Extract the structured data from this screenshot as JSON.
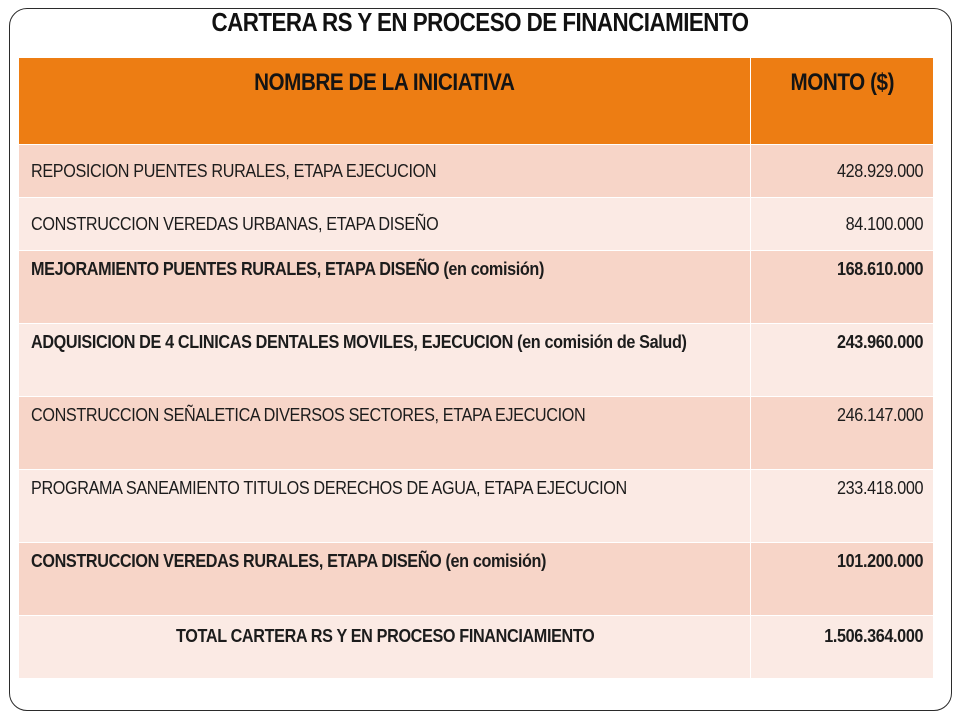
{
  "slide": {
    "title": "CARTERA RS Y EN PROCESO DE FINANCIAMIENTO"
  },
  "table": {
    "headers": {
      "name": "NOMBRE DE LA INICIATIVA",
      "amount": "MONTO ($)"
    },
    "rows": [
      {
        "name": "REPOSICION PUENTES RURALES, ETAPA EJECUCION",
        "amount": "428.929.000",
        "bold": false
      },
      {
        "name": "CONSTRUCCION VEREDAS URBANAS, ETAPA DISEÑO",
        "amount": "84.100.000",
        "bold": false
      },
      {
        "name": "MEJORAMIENTO PUENTES RURALES, ETAPA DISEÑO (en comisión)",
        "amount": "168.610.000",
        "bold": true
      },
      {
        "name": "ADQUISICION DE 4 CLINICAS DENTALES MOVILES, EJECUCION (en comisión de Salud)",
        "amount": "243.960.000",
        "bold": true
      },
      {
        "name": "CONSTRUCCION SEÑALETICA DIVERSOS SECTORES, ETAPA EJECUCION",
        "amount": "246.147.000",
        "bold": false
      },
      {
        "name": "PROGRAMA SANEAMIENTO TITULOS DERECHOS DE AGUA, ETAPA EJECUCION",
        "amount": "233.418.000",
        "bold": false
      },
      {
        "name": "CONSTRUCCION VEREDAS RURALES, ETAPA DISEÑO (en comisión)",
        "amount": "101.200.000",
        "bold": true
      }
    ],
    "total": {
      "name": "TOTAL CARTERA RS Y EN PROCESO FINANCIAMIENTO",
      "amount": "1.506.364.000"
    }
  },
  "colors": {
    "header": "#ed7d13",
    "row_dark": "#f7d5c8",
    "row_light": "#fbeae4",
    "frame_border": "#2b2b2b"
  }
}
